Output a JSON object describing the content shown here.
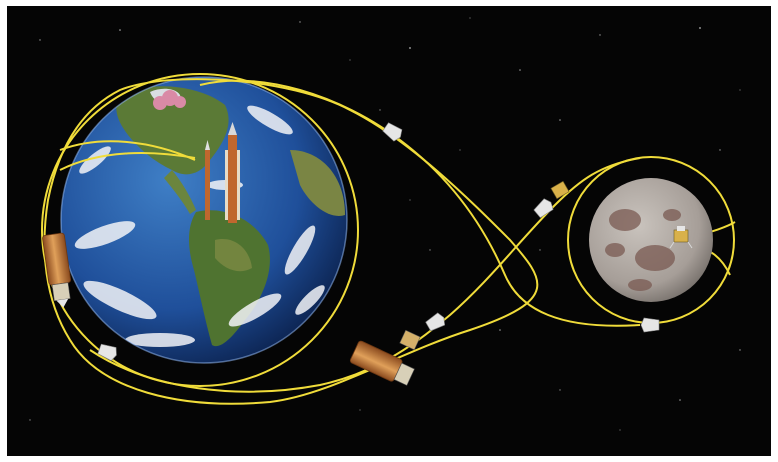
{
  "scene": {
    "subject": "lunar-mission-trajectory",
    "colors": {
      "frame": "#ffffff",
      "space": "#050505",
      "trajectory": "#f0dc3a",
      "ocean": "#1f4f9a",
      "land": "#5b7a36",
      "cloud": "#f2f4f7",
      "moon": "#a69e98",
      "moon_mare": "#7a5a52",
      "rocket": "#c0672e",
      "stage": "#c8843c",
      "capsule": "#e6e6e6"
    },
    "icons": [
      "earth-icon",
      "moon-icon",
      "launch-rocket-icon",
      "upper-stage-icon",
      "capsule-icon",
      "lander-icon",
      "trajectory-path-icon"
    ]
  }
}
